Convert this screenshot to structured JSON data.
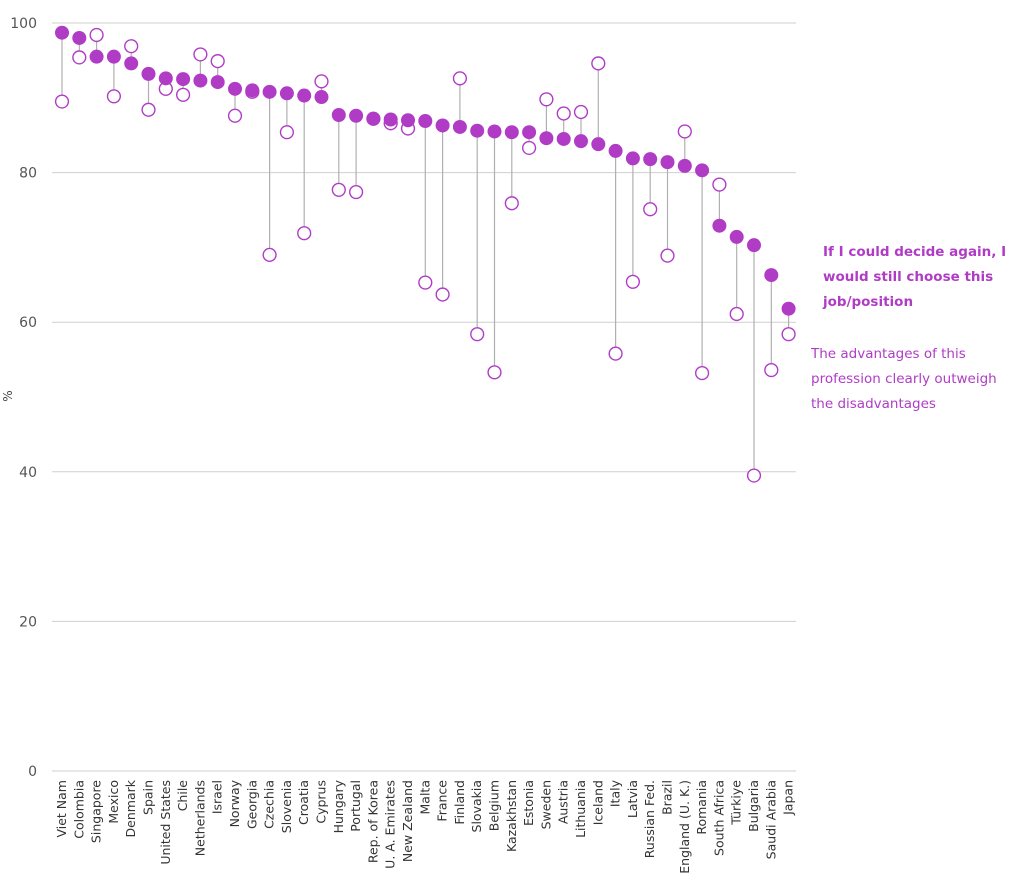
{
  "chart_data": {
    "type": "dot-plot",
    "ylabel": "%",
    "ylim": [
      0,
      100
    ],
    "yticks": [
      0,
      20,
      40,
      60,
      80,
      100
    ],
    "grid": true,
    "legend_placement": "right",
    "categories": [
      "Viet Nam",
      "Colombia",
      "Singapore",
      "Mexico",
      "Denmark",
      "Spain",
      "United States",
      "Chile",
      "Netherlands",
      "Israel",
      "Norway",
      "Georgia",
      "Czechia",
      "Slovenia",
      "Croatia",
      "Cyprus",
      "Hungary",
      "Portugal",
      "Rep. of Korea",
      "U. A. Emirates",
      "New Zealand",
      "Malta",
      "France",
      "Finland",
      "Slovakia",
      "Belgium",
      "Kazakhstan",
      "Estonia",
      "Sweden",
      "Austria",
      "Lithuania",
      "Iceland",
      "Italy",
      "Latvia",
      "Russian Fed.",
      "Brazil",
      "England (U. K.)",
      "Romania",
      "South Africa",
      "Türkiye",
      "Bulgaria",
      "Saudi Arabia",
      "Japan"
    ],
    "series": [
      {
        "name": "If I could decide again, I would still choose this job/position",
        "marker": "filled",
        "color": "#b03cc6",
        "values": [
          98.7,
          98.0,
          95.5,
          95.5,
          94.6,
          93.2,
          92.6,
          92.5,
          92.3,
          92.1,
          91.2,
          91.0,
          90.8,
          90.6,
          90.3,
          90.1,
          87.7,
          87.6,
          87.2,
          87.1,
          87.0,
          86.9,
          86.3,
          86.1,
          85.6,
          85.5,
          85.4,
          85.4,
          84.6,
          84.5,
          84.2,
          83.8,
          82.9,
          81.9,
          81.8,
          81.4,
          80.9,
          80.3,
          72.9,
          71.4,
          70.3,
          66.3,
          61.8
        ]
      },
      {
        "name": "The advantages of this profession clearly outweigh the disadvantages",
        "marker": "open",
        "color": "#b03cc6",
        "values": [
          89.5,
          95.4,
          98.4,
          90.2,
          96.9,
          88.4,
          91.2,
          90.4,
          95.8,
          94.9,
          87.6,
          90.8,
          69.0,
          85.4,
          71.9,
          92.2,
          77.7,
          77.4,
          87.2,
          86.6,
          85.9,
          65.3,
          63.7,
          92.6,
          58.4,
          53.3,
          75.9,
          83.3,
          89.8,
          87.9,
          88.1,
          94.6,
          55.8,
          65.4,
          75.1,
          68.9,
          85.5,
          53.2,
          78.4,
          61.1,
          39.5,
          53.6,
          58.4
        ]
      }
    ]
  }
}
